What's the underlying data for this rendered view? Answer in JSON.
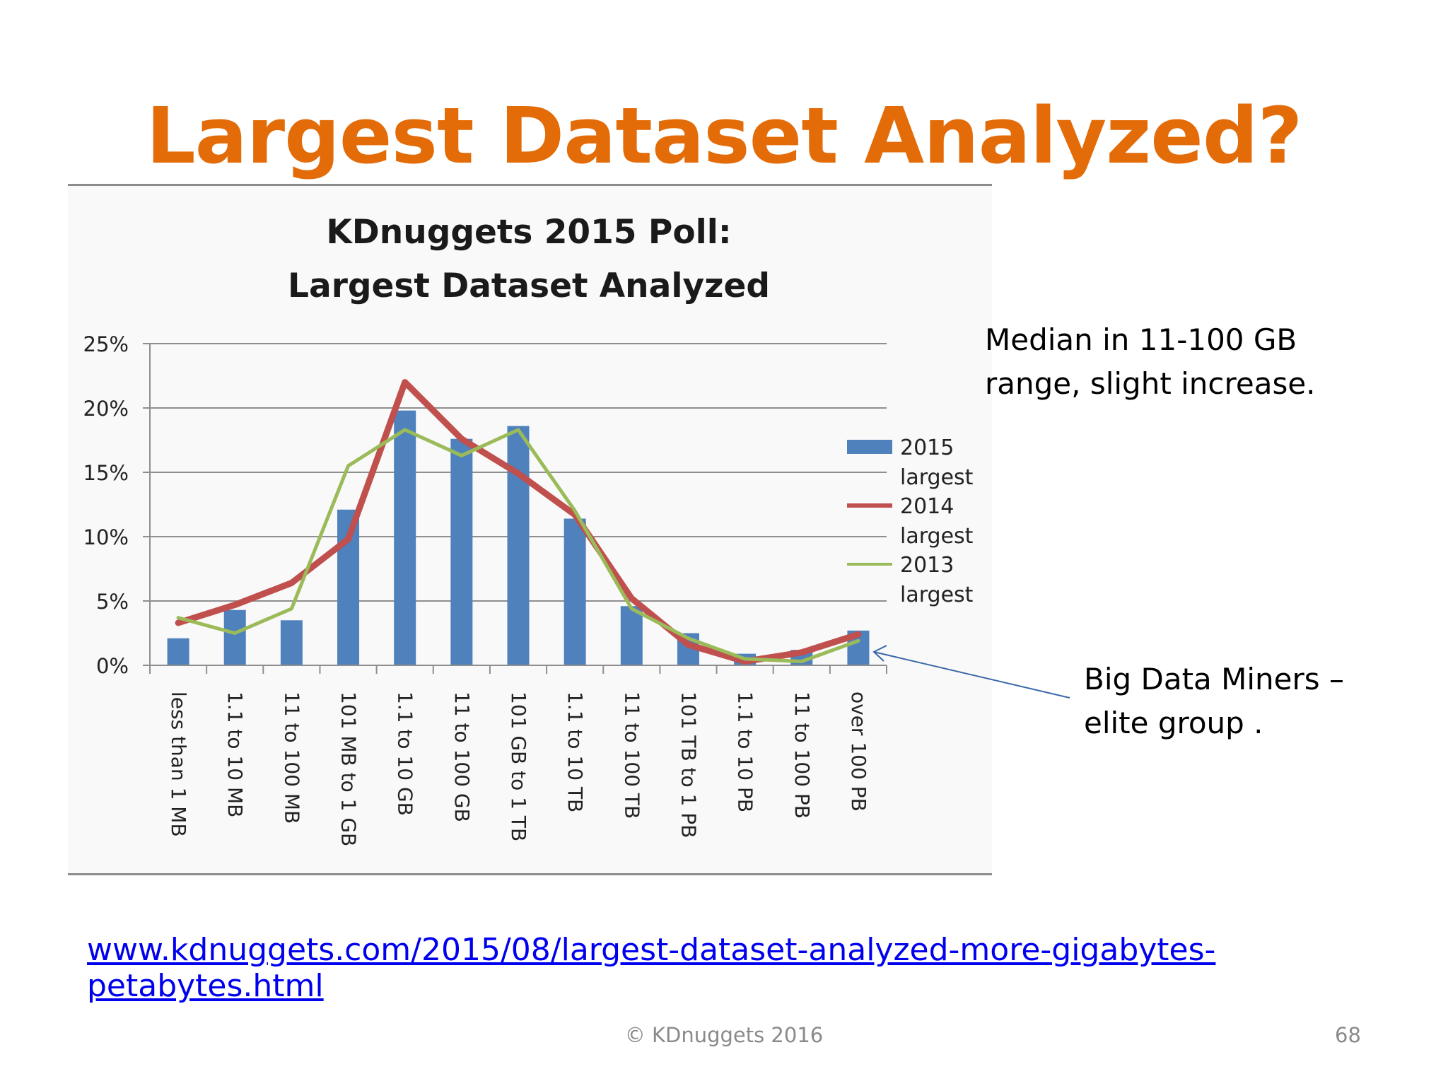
{
  "slide": {
    "title": "Largest Dataset Analyzed?",
    "median_note": "Median in 11-100 GB range, slight increase.",
    "miners_note": "Big Data Miners – elite group .",
    "source_url": "www.kdnuggets.com/2015/08/largest-dataset-analyzed-more-gigabytes-petabytes.html",
    "footer": "© KDnuggets 2016",
    "page_number": "68"
  },
  "chart_data": {
    "type": "bar",
    "title_line1": "KDnuggets 2015 Poll:",
    "title_line2": "Largest Dataset Analyzed",
    "categories": [
      "less than 1 MB",
      "1.1 to 10 MB",
      "11 to 100 MB",
      "101 MB to 1 GB",
      "1.1 to 10 GB",
      "11 to 100 GB",
      "101 GB to 1 TB",
      "1.1 to 10 TB",
      "11 to 100 TB",
      "101 TB to 1 PB",
      "1.1 to 10 PB",
      "11 to 100 PB",
      "over 100 PB"
    ],
    "yticks": [
      "0%",
      "5%",
      "10%",
      "15%",
      "20%",
      "25%"
    ],
    "ylim": [
      0,
      25
    ],
    "grid": true,
    "legend_position": "right",
    "series": [
      {
        "name": "2015 largest",
        "kind": "bar",
        "color": "#4f81bd",
        "values": [
          2.1,
          4.3,
          3.5,
          12.1,
          19.8,
          17.6,
          18.6,
          11.4,
          4.6,
          2.5,
          0.9,
          1.2,
          2.7
        ]
      },
      {
        "name": "2014 largest",
        "kind": "line",
        "color": "#c0504d",
        "values": [
          3.3,
          4.7,
          6.4,
          9.8,
          22.0,
          17.6,
          14.9,
          11.7,
          5.2,
          1.6,
          0.3,
          1.0,
          2.4
        ]
      },
      {
        "name": "2013 largest",
        "kind": "line",
        "color": "#9bbb59",
        "values": [
          3.7,
          2.5,
          4.4,
          15.5,
          18.3,
          16.3,
          18.3,
          12.0,
          4.4,
          2.1,
          0.5,
          0.3,
          1.9
        ]
      }
    ]
  }
}
